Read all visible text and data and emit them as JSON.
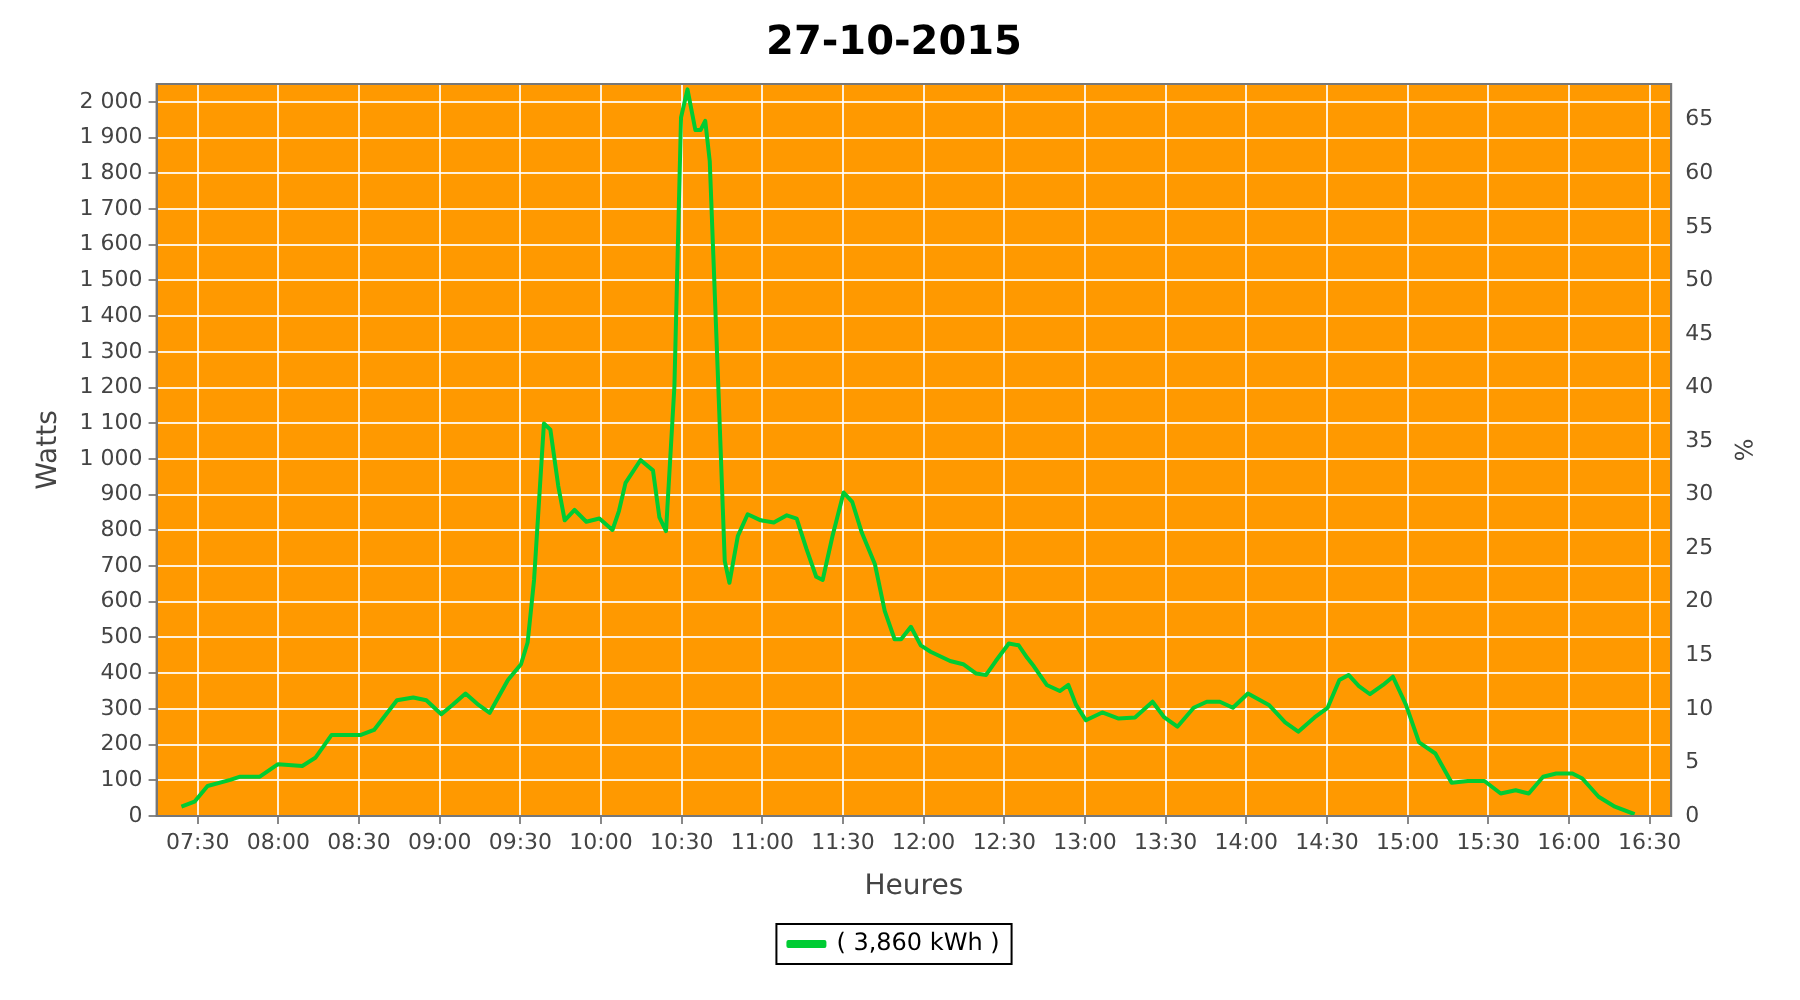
{
  "chart_data": {
    "type": "line",
    "title": "27-10-2015",
    "xlabel": "Heures",
    "ylabel": "Watts",
    "y2label": "%",
    "x": [
      7.399,
      7.48,
      7.561,
      7.702,
      7.763,
      7.885,
      7.998,
      8.148,
      8.229,
      8.33,
      8.512,
      8.593,
      8.735,
      8.836,
      8.917,
      9.01,
      9.079,
      9.16,
      9.241,
      9.31,
      9.423,
      9.504,
      9.545,
      9.585,
      9.646,
      9.686,
      9.735,
      9.775,
      9.836,
      9.909,
      9.99,
      10.071,
      10.111,
      10.152,
      10.245,
      10.322,
      10.362,
      10.403,
      10.455,
      10.496,
      10.536,
      10.585,
      10.617,
      10.646,
      10.674,
      10.727,
      10.767,
      10.796,
      10.848,
      10.909,
      10.99,
      11.071,
      11.152,
      11.213,
      11.273,
      11.334,
      11.374,
      11.435,
      11.504,
      11.557,
      11.617,
      11.698,
      11.759,
      11.82,
      11.86,
      11.921,
      11.982,
      12.043,
      12.164,
      12.245,
      12.326,
      12.387,
      12.447,
      12.528,
      12.589,
      12.642,
      12.682,
      12.763,
      12.844,
      12.897,
      12.945,
      13.006,
      13.107,
      13.209,
      13.31,
      13.419,
      13.492,
      13.573,
      13.674,
      13.755,
      13.836,
      13.917,
      14.01,
      14.14,
      14.241,
      14.322,
      14.423,
      14.504,
      14.577,
      14.634,
      14.698,
      14.767,
      14.848,
      14.909,
      14.99,
      15.071,
      15.172,
      15.273,
      15.374,
      15.476,
      15.577,
      15.67,
      15.751,
      15.84,
      15.921,
      16.022,
      16.083,
      16.184,
      16.285,
      16.407
    ],
    "series": [
      {
        "name": "( 3,860 kWh )",
        "color": "#00cc33",
        "values": [
          26,
          40,
          84,
          101,
          110,
          110,
          145,
          140,
          163,
          227,
          227,
          241,
          324,
          332,
          324,
          285,
          311,
          343,
          311,
          289,
          381,
          425,
          486,
          661,
          1099,
          1082,
          924,
          828,
          857,
          824,
          833,
          801,
          854,
          933,
          997,
          968,
          836,
          798,
          1204,
          1956,
          2035,
          1921,
          1921,
          1947,
          1834,
          1204,
          714,
          653,
          784,
          845,
          828,
          822,
          842,
          833,
          749,
          670,
          661,
          784,
          906,
          880,
          793,
          705,
          574,
          495,
          495,
          530,
          478,
          460,
          434,
          425,
          399,
          395,
          434,
          483,
          478,
          443,
          420,
          367,
          350,
          367,
          311,
          268,
          290,
          273,
          276,
          320,
          276,
          250,
          303,
          320,
          320,
          303,
          343,
          311,
          262,
          236,
          276,
          303,
          381,
          395,
          364,
          341,
          367,
          390,
          311,
          206,
          175,
          93,
          98,
          98,
          63,
          72,
          63,
          110,
          119,
          119,
          105,
          54,
          26,
          5
        ]
      }
    ],
    "xlim": [
      7.245,
      16.634
    ],
    "xticks": [
      {
        "value": 7.5,
        "label": "07:30"
      },
      {
        "value": 8,
        "label": "08:00"
      },
      {
        "value": 8.5,
        "label": "08:30"
      },
      {
        "value": 9,
        "label": "09:00"
      },
      {
        "value": 9.5,
        "label": "09:30"
      },
      {
        "value": 10,
        "label": "10:00"
      },
      {
        "value": 10.5,
        "label": "10:30"
      },
      {
        "value": 11,
        "label": "11:00"
      },
      {
        "value": 11.5,
        "label": "11:30"
      },
      {
        "value": 12,
        "label": "12:00"
      },
      {
        "value": 12.5,
        "label": "12:30"
      },
      {
        "value": 13,
        "label": "13:00"
      },
      {
        "value": 13.5,
        "label": "13:30"
      },
      {
        "value": 14,
        "label": "14:00"
      },
      {
        "value": 14.5,
        "label": "14:30"
      },
      {
        "value": 15,
        "label": "15:00"
      },
      {
        "value": 15.5,
        "label": "15:30"
      },
      {
        "value": 16,
        "label": "16:00"
      },
      {
        "value": 16.5,
        "label": "16:30"
      }
    ],
    "ylim": [
      0,
      2050
    ],
    "yticks": [
      0,
      100,
      200,
      300,
      400,
      500,
      600,
      700,
      800,
      900,
      {
        "value": 1000,
        "label": "1 000"
      },
      {
        "value": 1100,
        "label": "1 100"
      },
      {
        "value": 1200,
        "label": "1 200"
      },
      {
        "value": 1300,
        "label": "1 300"
      },
      {
        "value": 1400,
        "label": "1 400"
      },
      {
        "value": 1500,
        "label": "1 500"
      },
      {
        "value": 1600,
        "label": "1 600"
      },
      {
        "value": 1700,
        "label": "1 700"
      },
      {
        "value": 1800,
        "label": "1 800"
      },
      {
        "value": 1900,
        "label": "1 900"
      },
      {
        "value": 2000,
        "label": "2 000"
      }
    ],
    "y2lim": [
      0,
      68.33
    ],
    "y2ticks": [
      0,
      5,
      10,
      15,
      20,
      25,
      30,
      35,
      40,
      45,
      50,
      55,
      60,
      65
    ],
    "grid": true,
    "legend": "bottom",
    "marker": "none",
    "line_style": "solid"
  }
}
